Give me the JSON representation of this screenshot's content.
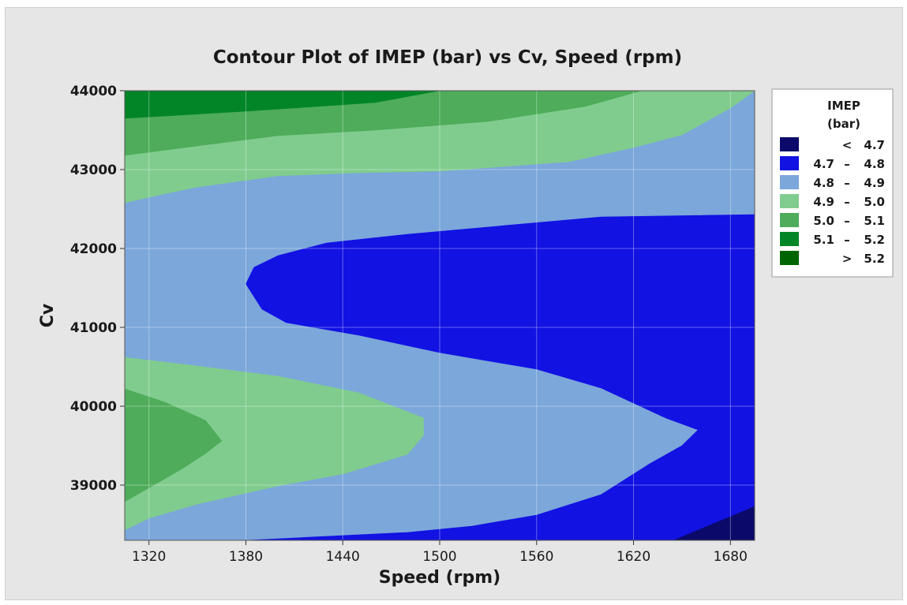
{
  "chart_data": {
    "type": "contour",
    "title": "Contour Plot of IMEP (bar) vs Cv, Speed (rpm)",
    "xlabel": "Speed (rpm)",
    "ylabel": "Cv",
    "xlim": [
      1305,
      1695
    ],
    "ylim": [
      38300,
      44000
    ],
    "x_ticks": [
      1320,
      1380,
      1440,
      1500,
      1560,
      1620,
      1680
    ],
    "x_tick_labels": [
      "1320",
      "1380",
      "1440",
      "1500",
      "1560",
      "1620",
      "1680"
    ],
    "y_ticks": [
      39000,
      40000,
      41000,
      42000,
      43000,
      44000
    ],
    "y_tick_labels": [
      "39000",
      "40000",
      "41000",
      "42000",
      "43000",
      "44000"
    ],
    "grid": true,
    "legend": {
      "title_line1": "IMEP",
      "title_line2": "(bar)",
      "placement": "right",
      "entries": [
        {
          "op": "<",
          "lo": "",
          "hi": "4.7",
          "color": "#0b0a6b"
        },
        {
          "op": "–",
          "lo": "4.7",
          "hi": "4.8",
          "color": "#1212e3"
        },
        {
          "op": "–",
          "lo": "4.8",
          "hi": "4.9",
          "color": "#7ba7da"
        },
        {
          "op": "–",
          "lo": "4.9",
          "hi": "5.0",
          "color": "#80cc8e"
        },
        {
          "op": "–",
          "lo": "5.0",
          "hi": "5.1",
          "color": "#4eac5a"
        },
        {
          "op": "–",
          "lo": "5.1",
          "hi": "5.2",
          "color": "#028527"
        },
        {
          "op": ">",
          "lo": "",
          "hi": "5.2",
          "color": "#006400"
        }
      ]
    },
    "regions": [
      {
        "level": "4.8 – 4.9",
        "color": "#7ba7da",
        "polygon": [
          [
            1305,
            38300
          ],
          [
            1695,
            38300
          ],
          [
            1695,
            44000
          ],
          [
            1305,
            44000
          ]
        ]
      },
      {
        "level": "4.9 – 5.0",
        "color": "#80cc8e",
        "polygon": [
          [
            1305,
            42580
          ],
          [
            1320,
            42650
          ],
          [
            1350,
            42780
          ],
          [
            1400,
            42920
          ],
          [
            1450,
            42960
          ],
          [
            1500,
            42980
          ],
          [
            1580,
            43100
          ],
          [
            1620,
            43280
          ],
          [
            1650,
            43440
          ],
          [
            1680,
            43780
          ],
          [
            1695,
            44000
          ],
          [
            1305,
            44000
          ]
        ]
      },
      {
        "level": "5.0 – 5.1",
        "color": "#4eac5a",
        "polygon": [
          [
            1305,
            43180
          ],
          [
            1350,
            43300
          ],
          [
            1400,
            43430
          ],
          [
            1460,
            43500
          ],
          [
            1530,
            43610
          ],
          [
            1590,
            43800
          ],
          [
            1625,
            44000
          ],
          [
            1305,
            44000
          ]
        ]
      },
      {
        "level": "5.1 – 5.2",
        "color": "#028527",
        "polygon": [
          [
            1305,
            43650
          ],
          [
            1380,
            43740
          ],
          [
            1460,
            43850
          ],
          [
            1500,
            44000
          ],
          [
            1305,
            44000
          ]
        ]
      },
      {
        "level": "4.7 – 4.8",
        "color": "#1212e3",
        "polygon": [
          [
            1695,
            42430
          ],
          [
            1600,
            42400
          ],
          [
            1480,
            42180
          ],
          [
            1430,
            42070
          ],
          [
            1400,
            41910
          ],
          [
            1385,
            41760
          ],
          [
            1380,
            41550
          ],
          [
            1390,
            41230
          ],
          [
            1405,
            41060
          ],
          [
            1450,
            40900
          ],
          [
            1500,
            40680
          ],
          [
            1560,
            40470
          ],
          [
            1600,
            40230
          ],
          [
            1640,
            39850
          ],
          [
            1660,
            39700
          ],
          [
            1650,
            39500
          ],
          [
            1630,
            39270
          ],
          [
            1600,
            38880
          ],
          [
            1560,
            38620
          ],
          [
            1520,
            38480
          ],
          [
            1480,
            38400
          ],
          [
            1400,
            38320
          ],
          [
            1380,
            38300
          ],
          [
            1695,
            38300
          ]
        ]
      },
      {
        "level": "4.9 – 5.0",
        "color": "#80cc8e",
        "polygon": [
          [
            1305,
            40620
          ],
          [
            1350,
            40510
          ],
          [
            1400,
            40380
          ],
          [
            1450,
            40170
          ],
          [
            1490,
            39850
          ],
          [
            1490,
            39630
          ],
          [
            1480,
            39390
          ],
          [
            1440,
            39140
          ],
          [
            1400,
            38990
          ],
          [
            1350,
            38760
          ],
          [
            1320,
            38580
          ],
          [
            1305,
            38430
          ]
        ]
      },
      {
        "level": "5.0 – 5.1",
        "color": "#4eac5a",
        "polygon": [
          [
            1305,
            40220
          ],
          [
            1330,
            40050
          ],
          [
            1355,
            39820
          ],
          [
            1365,
            39560
          ],
          [
            1355,
            39400
          ],
          [
            1340,
            39200
          ],
          [
            1305,
            38790
          ]
        ]
      },
      {
        "level": "< 4.7",
        "color": "#0b0a6b",
        "polygon": [
          [
            1695,
            38730
          ],
          [
            1680,
            38600
          ],
          [
            1660,
            38430
          ],
          [
            1645,
            38300
          ],
          [
            1695,
            38300
          ]
        ]
      }
    ]
  }
}
